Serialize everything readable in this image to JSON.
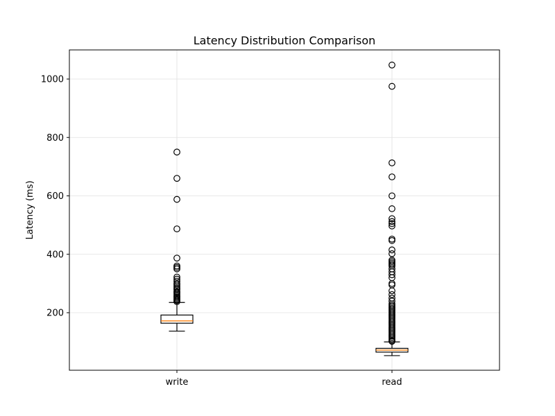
{
  "chart_data": {
    "type": "box",
    "title": "Latency Distribution Comparison",
    "xlabel": "",
    "ylabel": "Latency (ms)",
    "categories": [
      "write",
      "read"
    ],
    "ylim": [
      0,
      1100
    ],
    "yticks": [
      200,
      400,
      600,
      800,
      1000
    ],
    "grid": true,
    "colors": {
      "box_edge": "#000000",
      "median": "#ff7f0e",
      "box_fill": "#ffffff",
      "grid": "#e0e0e0",
      "flier": "#000000"
    },
    "series": [
      {
        "category": "write",
        "whisker_low": 137,
        "q1": 164,
        "median": 172,
        "q3": 192,
        "whisker_high": 235,
        "outliers": [
          750,
          660,
          588,
          487,
          387,
          360,
          355,
          350,
          322,
          315,
          308,
          300,
          295,
          289,
          284,
          279,
          272,
          268,
          263,
          258,
          254,
          250,
          246,
          242,
          238
        ]
      },
      {
        "category": "read",
        "whisker_low": 53,
        "q1": 65,
        "median": 72,
        "q3": 78,
        "whisker_high": 100,
        "outliers": [
          1048,
          975,
          713,
          665,
          600,
          556,
          522,
          512,
          505,
          497,
          452,
          447,
          415,
          402,
          380,
          375,
          370,
          365,
          360,
          350,
          340,
          330,
          320,
          300,
          295,
          275,
          262,
          250,
          240,
          230,
          225,
          220,
          215,
          210,
          205,
          200,
          195,
          190,
          185,
          180,
          175,
          170,
          165,
          160,
          155,
          150,
          145,
          140,
          135,
          130,
          125,
          120,
          115,
          110,
          105,
          102
        ]
      }
    ]
  }
}
